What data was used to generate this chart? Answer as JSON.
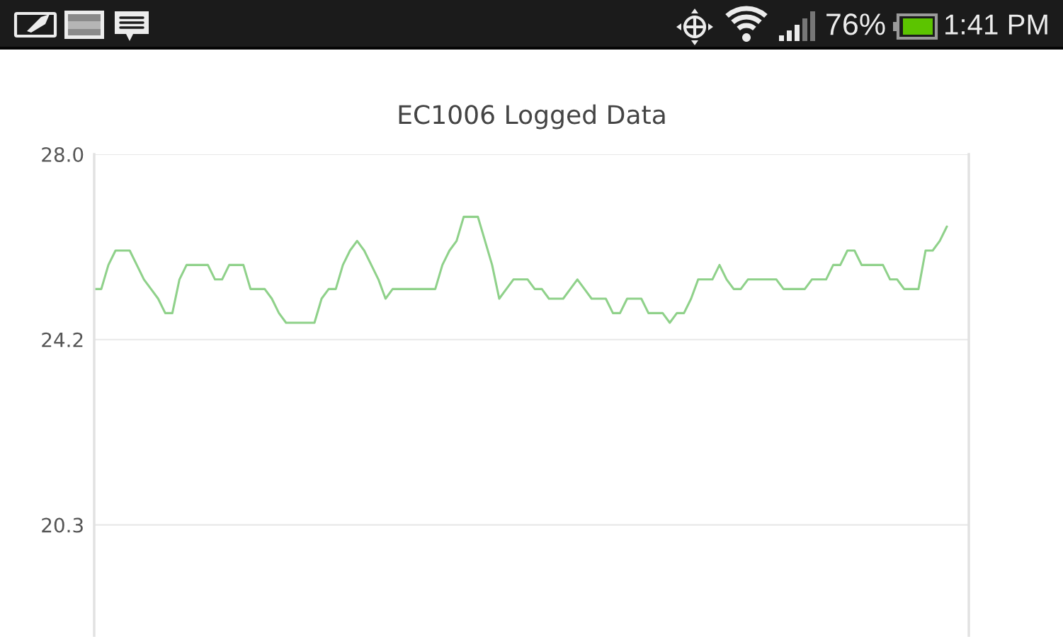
{
  "chart_data": {
    "type": "line",
    "title": "EC1006 Logged Data",
    "categories": [
      null,
      null,
      null,
      null,
      null,
      null,
      null,
      null,
      null,
      null,
      null,
      null,
      null,
      null,
      null,
      null,
      null,
      null,
      null,
      null,
      null,
      null,
      null,
      null,
      null,
      null,
      null,
      null,
      null,
      null,
      null,
      null,
      null,
      null,
      null,
      null,
      null,
      null,
      null,
      null,
      null,
      null,
      null,
      null,
      null,
      null,
      null,
      null,
      null,
      null,
      null,
      null,
      null,
      null,
      null,
      null,
      null,
      null,
      null,
      null,
      null,
      null,
      null,
      null,
      null,
      null,
      null,
      null,
      null,
      null,
      null,
      null,
      null,
      null,
      null,
      null,
      null,
      null,
      null,
      null,
      null,
      null,
      null,
      null,
      null,
      null,
      null,
      null,
      null,
      null,
      null,
      null,
      null,
      null,
      null,
      null,
      null,
      null,
      null,
      null,
      null,
      null,
      null,
      null,
      null,
      null,
      null,
      null,
      null,
      null,
      null,
      null,
      null,
      null,
      null,
      null,
      null,
      null,
      null,
      null,
      null
    ],
    "series": [
      {
        "color": "#8fd18a",
        "values": [
          25.2,
          25.2,
          25.7,
          26.0,
          26.0,
          26.0,
          25.7,
          25.4,
          25.2,
          25.0,
          24.7,
          24.7,
          25.4,
          25.7,
          25.7,
          25.7,
          25.7,
          25.4,
          25.4,
          25.7,
          25.7,
          25.7,
          25.2,
          25.2,
          25.2,
          25.0,
          24.7,
          24.5,
          24.5,
          24.5,
          24.5,
          24.5,
          25.0,
          25.2,
          25.2,
          25.7,
          26.0,
          26.2,
          26.0,
          25.7,
          25.4,
          25.0,
          25.2,
          25.2,
          25.2,
          25.2,
          25.2,
          25.2,
          25.2,
          25.7,
          26.0,
          26.2,
          26.7,
          26.7,
          26.7,
          26.2,
          25.7,
          25.0,
          25.2,
          25.4,
          25.4,
          25.4,
          25.2,
          25.2,
          25.0,
          25.0,
          25.0,
          25.2,
          25.4,
          25.2,
          25.0,
          25.0,
          25.0,
          24.7,
          24.7,
          25.0,
          25.0,
          25.0,
          24.7,
          24.7,
          24.7,
          24.5,
          24.7,
          24.7,
          25.0,
          25.4,
          25.4,
          25.4,
          25.7,
          25.4,
          25.2,
          25.2,
          25.4,
          25.4,
          25.4,
          25.4,
          25.4,
          25.2,
          25.2,
          25.2,
          25.2,
          25.4,
          25.4,
          25.4,
          25.7,
          25.7,
          26.0,
          26.0,
          25.7,
          25.7,
          25.7,
          25.7,
          25.4,
          25.4,
          25.2,
          25.2,
          25.2,
          26.0,
          26.0,
          26.2,
          26.5
        ]
      }
    ],
    "ylim": [
      18.0,
      28.0
    ],
    "yticks": [
      {
        "value": 28.0,
        "label": "28.0"
      },
      {
        "value": 24.15,
        "label": "24.2"
      },
      {
        "value": 20.3,
        "label": "20.3"
      }
    ],
    "grid": "y",
    "tick_labels": "y",
    "annotations": [
      "76%",
      "1:41 PM"
    ]
  }
}
